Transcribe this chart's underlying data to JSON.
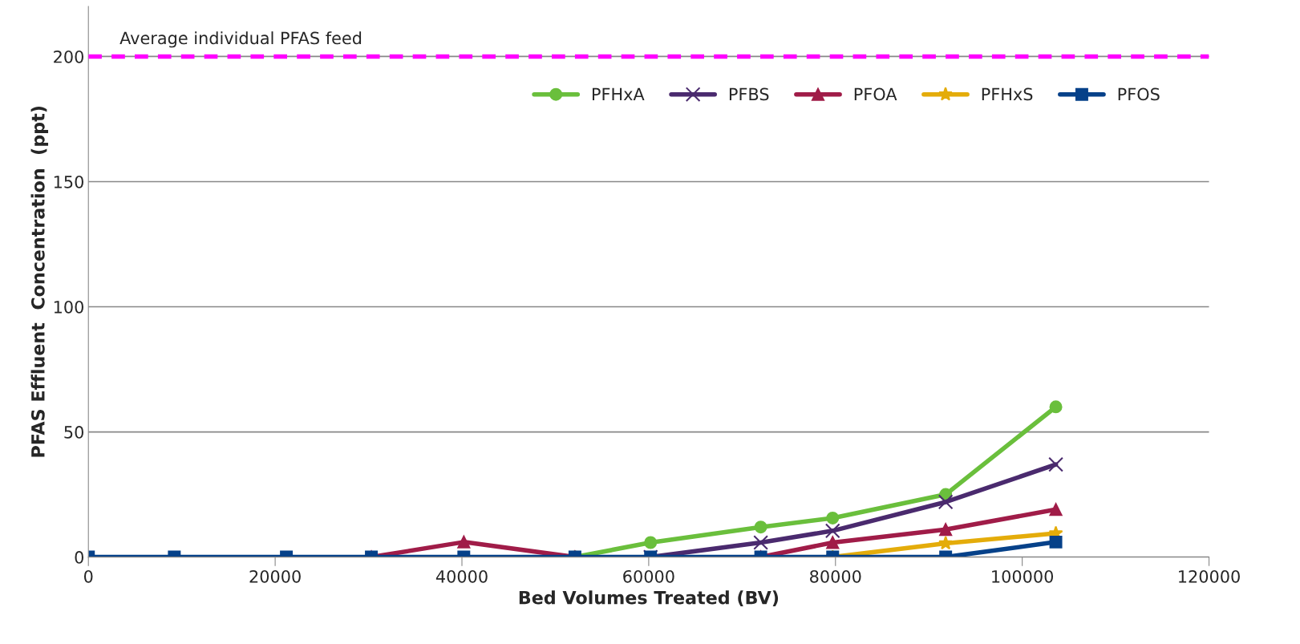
{
  "chart_data": {
    "type": "line",
    "xlabel": "Bed Volumes Treated (BV)",
    "ylabel": "PFAS Effluent  Concentration  (ppt)",
    "x": [
      0,
      9200,
      21200,
      30300,
      40200,
      52100,
      60200,
      72000,
      79700,
      91800,
      103600
    ],
    "series": [
      {
        "name": "PFHxA",
        "color": "#6abf3c",
        "marker": "circle",
        "values": [
          null,
          null,
          null,
          null,
          null,
          0,
          5.8,
          12,
          15.6,
          25,
          60
        ]
      },
      {
        "name": "PFBS",
        "color": "#4a2a6e",
        "marker": "cross",
        "values": [
          null,
          null,
          null,
          null,
          null,
          null,
          0,
          5.8,
          10.5,
          22,
          37
        ]
      },
      {
        "name": "PFOA",
        "color": "#a01c48",
        "marker": "triangle",
        "values": [
          null,
          null,
          null,
          0,
          6,
          0,
          null,
          0,
          5.8,
          11,
          19
        ]
      },
      {
        "name": "PFHxS",
        "color": "#e4ac0a",
        "marker": "star",
        "values": [
          null,
          null,
          null,
          null,
          null,
          null,
          null,
          null,
          0,
          5.5,
          9.5
        ]
      },
      {
        "name": "PFOS",
        "color": "#064189",
        "marker": "square",
        "values": [
          0,
          0,
          0,
          0,
          0,
          0,
          0,
          0,
          0,
          0,
          6
        ]
      }
    ],
    "xlim": [
      0,
      120000
    ],
    "xticks": [
      0,
      20000,
      40000,
      60000,
      80000,
      100000,
      120000
    ],
    "ylim": [
      0,
      220
    ],
    "yticks": [
      0,
      50,
      100,
      150,
      200
    ],
    "ref_lines": [
      {
        "axis": "y",
        "value": 200,
        "label": "Average individual PFAS feed",
        "color": "#ff00ff",
        "line_style": "dashed"
      }
    ],
    "grid": "y",
    "legend": "top right",
    "line_style": "solid"
  }
}
